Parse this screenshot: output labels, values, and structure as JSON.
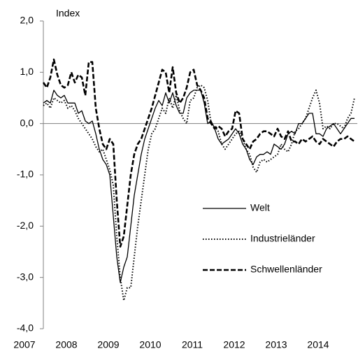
{
  "chart_data": {
    "type": "line",
    "y_label": "Index",
    "categories": [
      "2007",
      null,
      null,
      null,
      null,
      null,
      null,
      null,
      null,
      null,
      null,
      null,
      "2008",
      null,
      null,
      null,
      null,
      null,
      null,
      null,
      null,
      null,
      null,
      null,
      "2009",
      null,
      null,
      null,
      null,
      null,
      null,
      null,
      null,
      null,
      null,
      null,
      "2010",
      null,
      null,
      null,
      null,
      null,
      null,
      null,
      null,
      null,
      null,
      null,
      "2011",
      null,
      null,
      null,
      null,
      null,
      null,
      null,
      null,
      null,
      null,
      null,
      "2012",
      null,
      null,
      null,
      null,
      null,
      null,
      null,
      null,
      null,
      null,
      null,
      "2013",
      null,
      null,
      null,
      null,
      null,
      null,
      null,
      null,
      null,
      null,
      null,
      "2014",
      null,
      null,
      null,
      null,
      null
    ],
    "series": [
      {
        "name": "Welt",
        "color": "#000000",
        "style": "solid",
        "values": [
          0.4,
          0.45,
          0.4,
          0.65,
          0.55,
          0.5,
          0.55,
          0.4,
          0.4,
          0.4,
          0.2,
          0.25,
          0.05,
          0.0,
          0.05,
          -0.2,
          -0.5,
          -0.7,
          -0.8,
          -1.0,
          -1.8,
          -2.6,
          -3.1,
          -2.8,
          -2.6,
          -2.0,
          -1.4,
          -1.0,
          -0.6,
          -0.3,
          -0.1,
          0.1,
          0.3,
          0.45,
          0.35,
          0.6,
          0.4,
          0.6,
          0.35,
          0.2,
          0.2,
          0.5,
          0.6,
          0.65,
          0.65,
          0.65,
          0.4,
          0.0,
          0.05,
          -0.1,
          -0.3,
          -0.4,
          -0.35,
          -0.3,
          -0.2,
          -0.1,
          -0.2,
          -0.4,
          -0.5,
          -0.7,
          -0.8,
          -0.65,
          -0.6,
          -0.6,
          -0.55,
          -0.6,
          -0.4,
          -0.45,
          -0.5,
          -0.4,
          -0.2,
          -0.15,
          -0.2,
          0.0,
          0.0,
          0.1,
          0.2,
          0.2,
          -0.2,
          -0.2,
          -0.25,
          -0.1,
          -0.05,
          0.0,
          -0.1,
          -0.2,
          -0.1,
          0.0,
          0.1,
          0.1
        ]
      },
      {
        "name": "Industrieländer",
        "color": "#000000",
        "style": "dotted",
        "values": [
          0.35,
          0.4,
          0.3,
          0.5,
          0.45,
          0.4,
          0.45,
          0.3,
          0.35,
          0.25,
          0.1,
          0.0,
          -0.1,
          -0.2,
          -0.3,
          -0.45,
          -0.55,
          -0.5,
          -0.7,
          -0.9,
          -1.2,
          -2.2,
          -3.0,
          -3.45,
          -3.2,
          -3.2,
          -2.6,
          -2.0,
          -1.5,
          -1.0,
          -0.5,
          -0.2,
          -0.1,
          0.1,
          0.3,
          0.2,
          0.5,
          0.3,
          0.55,
          0.25,
          0.1,
          0.0,
          0.45,
          0.5,
          0.7,
          0.75,
          0.7,
          0.45,
          0.0,
          -0.05,
          -0.15,
          -0.4,
          -0.5,
          -0.4,
          -0.3,
          -0.2,
          -0.15,
          -0.3,
          -0.5,
          -0.6,
          -0.85,
          -0.95,
          -0.75,
          -0.7,
          -0.75,
          -0.7,
          -0.65,
          -0.6,
          -0.4,
          -0.5,
          -0.55,
          -0.4,
          -0.15,
          -0.1,
          0.0,
          0.1,
          0.3,
          0.5,
          0.65,
          0.4,
          -0.1,
          -0.05,
          -0.1,
          0.0,
          0.0,
          -0.05,
          -0.1,
          0.1,
          0.2,
          0.5
        ]
      },
      {
        "name": "Schwellenländer",
        "color": "#000000",
        "style": "dashed",
        "values": [
          0.8,
          0.7,
          0.9,
          1.25,
          0.95,
          0.75,
          0.7,
          0.75,
          1.0,
          0.8,
          0.95,
          0.9,
          0.55,
          1.2,
          1.2,
          0.3,
          -0.1,
          -0.4,
          -0.5,
          -0.3,
          -0.4,
          -1.5,
          -2.4,
          -2.2,
          -1.6,
          -1.0,
          -0.6,
          -0.4,
          -0.3,
          -0.1,
          0.1,
          0.3,
          0.55,
          0.8,
          1.05,
          1.0,
          0.6,
          1.1,
          0.6,
          0.4,
          0.5,
          0.7,
          1.0,
          1.05,
          0.75,
          0.65,
          0.5,
          0.1,
          0.0,
          -0.1,
          -0.05,
          -0.1,
          -0.25,
          -0.15,
          -0.1,
          0.25,
          0.2,
          -0.3,
          -0.4,
          -0.5,
          -0.35,
          -0.3,
          -0.2,
          -0.15,
          -0.15,
          -0.2,
          -0.25,
          -0.1,
          -0.25,
          -0.3,
          -0.15,
          -0.35,
          -0.35,
          -0.4,
          -0.3,
          -0.35,
          -0.3,
          -0.25,
          -0.35,
          -0.4,
          -0.3,
          -0.35,
          -0.4,
          -0.45,
          -0.35,
          -0.3,
          -0.3,
          -0.25,
          -0.3,
          -0.35
        ]
      }
    ],
    "ylim": [
      -4,
      2
    ],
    "yticks": [
      {
        "value": -4,
        "label": "-4,0"
      },
      {
        "value": -3,
        "label": "-3,0"
      },
      {
        "value": -2,
        "label": "-2,0"
      },
      {
        "value": -1,
        "label": "-1,0"
      },
      {
        "value": 0,
        "label": "0,0"
      },
      {
        "value": 1,
        "label": "1,0"
      },
      {
        "value": 2,
        "label": "2,0"
      }
    ]
  }
}
